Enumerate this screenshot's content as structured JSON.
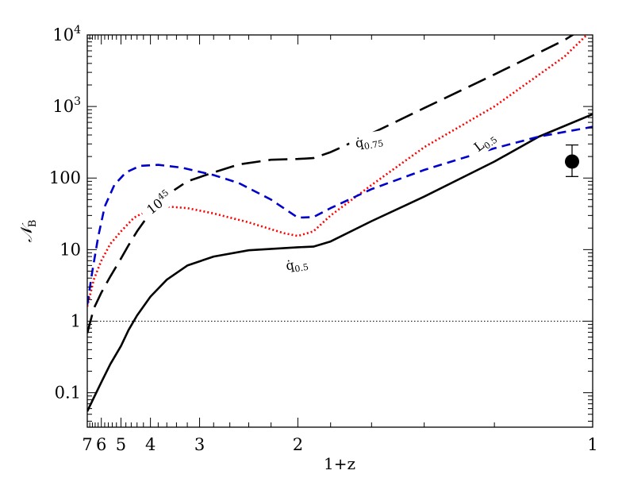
{
  "chart_data": {
    "type": "line",
    "title": "",
    "xlabel": "1+z",
    "ylabel": "𝒩",
    "ylabel_sub": "B",
    "x_scale": "reciprocal",
    "y_scale": "log",
    "xlim": [
      7,
      1
    ],
    "ylim": [
      0.033,
      10000
    ],
    "x_ticks": [
      {
        "value": 7,
        "label": "7"
      },
      {
        "value": 6,
        "label": "6"
      },
      {
        "value": 5,
        "label": "5"
      },
      {
        "value": 4,
        "label": "4"
      },
      {
        "value": 3,
        "label": "3"
      },
      {
        "value": 2,
        "label": "2"
      },
      {
        "value": 1,
        "label": "1"
      }
    ],
    "y_ticks": [
      {
        "value": 0.1,
        "label": "0.1"
      },
      {
        "value": 1,
        "label": "1"
      },
      {
        "value": 10,
        "label": "10"
      },
      {
        "value": 100,
        "label": "100"
      },
      {
        "value": 1000,
        "label": "10",
        "sup": "3"
      },
      {
        "value": 10000,
        "label": "10",
        "sup": "4"
      }
    ],
    "reference_line": {
      "y": 1,
      "style": "dotted",
      "color": "#000000"
    },
    "series": [
      {
        "label_main": "q̇",
        "label_sub": "0.5",
        "color": "#000000",
        "style": "solid",
        "points": [
          [
            7.0,
            0.055
          ],
          [
            6.5,
            0.085
          ],
          [
            6.0,
            0.14
          ],
          [
            5.5,
            0.25
          ],
          [
            5.0,
            0.45
          ],
          [
            4.7,
            0.75
          ],
          [
            4.4,
            1.2
          ],
          [
            4.0,
            2.2
          ],
          [
            3.6,
            3.8
          ],
          [
            3.2,
            6.0
          ],
          [
            2.8,
            8.0
          ],
          [
            2.4,
            9.8
          ],
          [
            2.0,
            10.8
          ],
          [
            1.9,
            11.0
          ],
          [
            1.8,
            13.0
          ],
          [
            1.6,
            25.0
          ],
          [
            1.4,
            55.0
          ],
          [
            1.2,
            170.0
          ],
          [
            1.1,
            380.0
          ],
          [
            1.0,
            780.0
          ]
        ]
      },
      {
        "label_main": "q̇",
        "label_sub": "0.75",
        "color": "#000000",
        "style": "long-dash",
        "points": [
          [
            7.0,
            0.68
          ],
          [
            6.5,
            1.5
          ],
          [
            6.0,
            2.5
          ],
          [
            5.5,
            4.2
          ],
          [
            5.0,
            7.5
          ],
          [
            4.7,
            11.5
          ],
          [
            4.4,
            18.0
          ],
          [
            4.0,
            33.0
          ],
          [
            3.6,
            58.0
          ],
          [
            3.2,
            90.0
          ],
          [
            2.8,
            120.0
          ],
          [
            2.5,
            155.0
          ],
          [
            2.2,
            180.0
          ],
          [
            2.0,
            185.0
          ],
          [
            1.9,
            190.0
          ],
          [
            1.8,
            230.0
          ],
          [
            1.6,
            420.0
          ],
          [
            1.4,
            950.0
          ],
          [
            1.2,
            2800.0
          ],
          [
            1.05,
            8500.0
          ],
          [
            1.0,
            15000.0
          ]
        ]
      },
      {
        "label_main": "L",
        "label_sub": "0.5",
        "color": "#ff0000",
        "style": "dotted",
        "points": [
          [
            7.0,
            1.6
          ],
          [
            6.5,
            3.8
          ],
          [
            6.0,
            7.0
          ],
          [
            5.5,
            12.0
          ],
          [
            5.0,
            18.0
          ],
          [
            4.5,
            28.0
          ],
          [
            4.0,
            37.0
          ],
          [
            3.6,
            40.0
          ],
          [
            3.2,
            38.0
          ],
          [
            2.8,
            32.0
          ],
          [
            2.4,
            24.0
          ],
          [
            2.1,
            17.0
          ],
          [
            2.0,
            15.5
          ],
          [
            1.9,
            18.0
          ],
          [
            1.8,
            30.0
          ],
          [
            1.6,
            80.0
          ],
          [
            1.4,
            270.0
          ],
          [
            1.2,
            1000.0
          ],
          [
            1.05,
            5000.0
          ],
          [
            1.0,
            12000.0
          ]
        ]
      },
      {
        "label_main": "10",
        "label_sup": "45",
        "color": "#0000cc",
        "style": "dashed",
        "points": [
          [
            7.0,
            1.7
          ],
          [
            6.6,
            5.0
          ],
          [
            6.2,
            15.0
          ],
          [
            5.8,
            40.0
          ],
          [
            5.3,
            80.0
          ],
          [
            4.8,
            120.0
          ],
          [
            4.3,
            148.0
          ],
          [
            3.8,
            153.0
          ],
          [
            3.3,
            140.0
          ],
          [
            2.8,
            110.0
          ],
          [
            2.5,
            85.0
          ],
          [
            2.2,
            50.0
          ],
          [
            2.0,
            28.0
          ],
          [
            1.9,
            28.5
          ],
          [
            1.8,
            38.0
          ],
          [
            1.6,
            70.0
          ],
          [
            1.4,
            130.0
          ],
          [
            1.2,
            260.0
          ],
          [
            1.1,
            380.0
          ],
          [
            1.0,
            520.0
          ]
        ]
      }
    ],
    "data_point": {
      "x": 1.0,
      "y": 170,
      "y_err_low": 105,
      "y_err_high": 290,
      "color": "#000000"
    }
  }
}
